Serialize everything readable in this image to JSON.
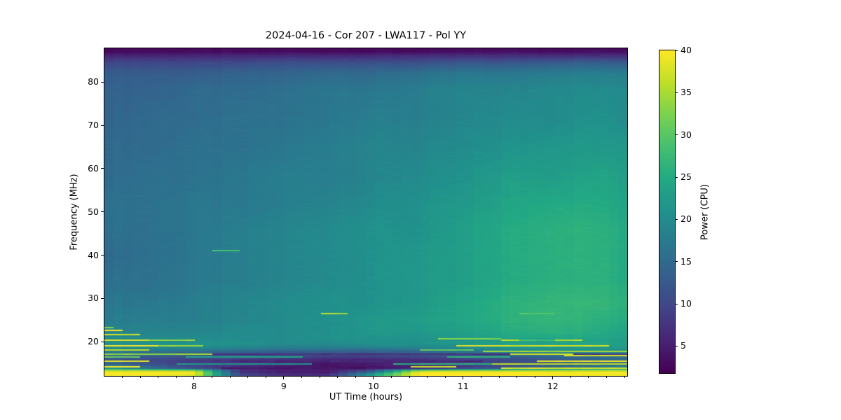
{
  "title": "2024-04-16 - Cor 207 - LWA117 - Pol YY",
  "chart_data": {
    "type": "heatmap",
    "subtype": "dynamic-spectrum",
    "title": "2024-04-16 - Cor 207 - LWA117 - Pol YY",
    "xlabel": "UT Time (hours)",
    "ylabel": "Frequency (MHz)",
    "colorbar_label": "Power (CPU)",
    "xlim": [
      7.0,
      12.83
    ],
    "ylim": [
      12.1,
      87.8
    ],
    "clim": [
      1.8,
      40
    ],
    "x_ticks": [
      8,
      9,
      10,
      11,
      12
    ],
    "x_minor_tick_step": 0.2,
    "y_ticks": [
      20,
      30,
      40,
      50,
      60,
      70,
      80
    ],
    "colorbar_ticks": [
      5,
      10,
      15,
      20,
      25,
      30,
      35,
      40
    ],
    "colormap": "viridis",
    "colormap_stops": [
      [
        0,
        "#440154"
      ],
      [
        0.1,
        "#482475"
      ],
      [
        0.2,
        "#414487"
      ],
      [
        0.3,
        "#355f8d"
      ],
      [
        0.4,
        "#2a788e"
      ],
      [
        0.5,
        "#21918c"
      ],
      [
        0.6,
        "#22a884"
      ],
      [
        0.7,
        "#44bf70"
      ],
      [
        0.8,
        "#7ad151"
      ],
      [
        0.9,
        "#bddf26"
      ],
      [
        1,
        "#fde725"
      ]
    ],
    "grid": false,
    "legend": false,
    "background": {
      "times": [
        7.0,
        7.5,
        8.0,
        8.5,
        9.0,
        9.5,
        10.0,
        10.5,
        11.0,
        11.5,
        12.0,
        12.5,
        12.85
      ],
      "freqs": [
        87.8,
        87.0,
        86.0,
        84.5,
        82.0,
        78.0,
        72.0,
        65.0,
        58.0,
        52.0,
        46.0,
        40.0,
        34.0,
        29.0,
        25.0,
        22.0,
        20.5,
        19.5,
        18.4,
        17.4,
        16.4,
        15.5,
        14.7,
        13.9,
        13.1,
        12.5,
        12.1
      ],
      "values": [
        [
          2.5,
          2.5,
          2.5,
          2.5,
          2.5,
          2.5,
          2.5,
          2.5,
          2.5,
          2.5,
          2.5,
          2.5,
          2.5
        ],
        [
          3,
          3,
          3,
          3,
          3,
          3,
          3,
          3,
          3.5,
          3.5,
          3.5,
          3.5,
          3.5
        ],
        [
          6,
          6,
          6,
          6,
          6.5,
          6.5,
          6.5,
          7,
          7,
          7,
          7,
          7,
          7
        ],
        [
          10,
          10,
          10,
          10,
          11,
          11,
          11,
          11,
          12,
          12,
          13,
          13,
          13
        ],
        [
          13,
          13,
          13,
          14,
          14,
          15,
          15,
          16,
          17,
          17,
          18,
          18,
          18
        ],
        [
          14,
          14,
          15,
          15,
          16,
          17,
          17,
          18,
          19,
          19,
          20,
          20,
          20
        ],
        [
          14,
          15,
          15,
          16,
          16,
          17,
          18,
          18,
          19,
          20,
          20,
          21,
          20
        ],
        [
          15,
          15,
          16,
          16,
          17,
          18,
          19,
          19,
          20,
          21,
          22,
          22,
          22
        ],
        [
          15,
          16,
          16,
          17,
          18,
          18,
          19,
          20,
          21,
          23,
          23,
          24,
          23
        ],
        [
          16,
          16,
          17,
          17,
          18,
          19,
          20,
          21,
          22,
          24,
          25,
          25,
          24
        ],
        [
          16,
          16,
          17,
          18,
          19,
          20,
          21,
          21,
          23,
          25,
          26,
          26,
          25
        ],
        [
          15,
          16,
          17,
          18,
          19,
          20,
          21,
          22,
          23,
          25,
          26,
          26,
          25
        ],
        [
          16,
          16,
          17,
          18,
          19,
          20,
          21,
          22,
          23,
          25,
          26,
          26,
          25
        ],
        [
          17,
          17,
          18,
          19,
          20,
          21,
          21,
          22,
          24,
          26,
          27,
          27,
          26
        ],
        [
          18,
          18,
          18,
          19,
          20,
          21,
          22,
          23,
          24,
          26,
          27,
          26,
          25
        ],
        [
          19,
          19,
          19,
          20,
          20,
          21,
          22,
          22,
          23,
          25,
          26,
          25,
          24
        ],
        [
          20,
          20,
          20,
          20,
          20,
          21,
          21,
          21,
          22,
          24,
          24,
          24,
          23
        ],
        [
          21,
          21,
          21,
          21,
          20,
          20,
          21,
          21,
          22,
          23,
          24,
          24,
          23
        ],
        [
          20,
          19,
          19,
          18,
          17,
          17,
          17,
          18,
          19,
          21,
          22,
          22,
          22
        ],
        [
          17,
          15,
          14,
          13,
          12,
          12,
          12,
          13,
          15,
          17,
          18,
          19,
          19
        ],
        [
          13,
          12,
          11,
          10,
          9,
          8,
          8,
          9,
          10,
          12,
          14,
          15,
          16
        ],
        [
          12,
          10,
          8,
          7,
          6,
          5,
          5,
          6,
          8,
          10,
          12,
          13,
          14
        ],
        [
          16,
          12,
          9,
          7,
          5,
          4,
          5,
          6,
          8,
          10,
          12,
          14,
          16
        ],
        [
          22,
          16,
          11,
          7,
          5,
          4,
          4,
          6,
          9,
          13,
          16,
          18,
          20
        ],
        [
          40,
          40,
          40,
          7,
          5,
          5,
          14,
          40,
          40,
          40,
          40,
          40,
          40
        ],
        [
          40,
          40,
          39,
          9,
          6,
          6,
          22,
          40,
          40,
          40,
          40,
          40,
          40
        ],
        [
          38,
          38,
          36,
          10,
          7,
          7,
          24,
          40,
          40,
          40,
          39,
          38,
          38
        ]
      ]
    },
    "rfi_stripes": [
      {
        "f": 23.2,
        "h": 0.25,
        "t0": 7.0,
        "t1": 7.1,
        "p": 33
      },
      {
        "f": 22.5,
        "h": 0.35,
        "t0": 7.0,
        "t1": 7.2,
        "p": 40
      },
      {
        "f": 21.8,
        "h": 0.3,
        "t0": 7.0,
        "t1": 7.35,
        "p": 37
      },
      {
        "f": 20.5,
        "h": 0.35,
        "t0": 7.0,
        "t1": 7.5,
        "p": 38
      },
      {
        "f": 20.5,
        "h": 0.3,
        "t0": 7.6,
        "t1": 7.95,
        "p": 34
      },
      {
        "f": 20.6,
        "h": 0.3,
        "t0": 10.75,
        "t1": 11.35,
        "p": 33
      },
      {
        "f": 20.2,
        "h": 0.35,
        "t0": 11.45,
        "t1": 12.3,
        "p": 36
      },
      {
        "f": 18.9,
        "h": 0.4,
        "t0": 7.0,
        "t1": 7.6,
        "p": 40
      },
      {
        "f": 18.9,
        "h": 0.35,
        "t0": 7.7,
        "t1": 8.05,
        "p": 34
      },
      {
        "f": 19.0,
        "h": 0.4,
        "t0": 11.0,
        "t1": 12.55,
        "p": 38
      },
      {
        "f": 18.2,
        "h": 0.3,
        "t0": 7.0,
        "t1": 7.45,
        "p": 36
      },
      {
        "f": 18.2,
        "h": 0.25,
        "t0": 10.6,
        "t1": 11.1,
        "p": 30
      },
      {
        "f": 17.9,
        "h": 0.3,
        "t0": 11.3,
        "t1": 12.85,
        "p": 35
      },
      {
        "f": 17.1,
        "h": 0.45,
        "t0": 8.3,
        "t1": 12.85,
        "p": 7
      },
      {
        "f": 17.1,
        "h": 0.4,
        "t0": 7.0,
        "t1": 8.2,
        "p": 34
      },
      {
        "f": 17.2,
        "h": 0.3,
        "t0": 11.6,
        "t1": 12.15,
        "p": 37
      },
      {
        "f": 16.9,
        "h": 0.25,
        "t0": 12.2,
        "t1": 12.85,
        "p": 38
      },
      {
        "f": 16.4,
        "h": 0.3,
        "t0": 7.0,
        "t1": 7.4,
        "p": 31
      },
      {
        "f": 16.4,
        "h": 0.25,
        "t0": 8.0,
        "t1": 9.2,
        "p": 24
      },
      {
        "f": 16.5,
        "h": 0.25,
        "t0": 10.9,
        "t1": 11.5,
        "p": 26
      },
      {
        "f": 15.6,
        "h": 0.4,
        "t0": 8.5,
        "t1": 11.2,
        "p": 6
      },
      {
        "f": 15.6,
        "h": 0.3,
        "t0": 7.0,
        "t1": 7.5,
        "p": 38
      },
      {
        "f": 15.5,
        "h": 0.35,
        "t0": 11.9,
        "t1": 12.85,
        "p": 39
      },
      {
        "f": 14.8,
        "h": 0.3,
        "t0": 7.9,
        "t1": 9.3,
        "p": 21
      },
      {
        "f": 14.9,
        "h": 0.3,
        "t0": 10.3,
        "t1": 11.3,
        "p": 26
      },
      {
        "f": 14.7,
        "h": 0.3,
        "t0": 11.4,
        "t1": 12.85,
        "p": 36
      },
      {
        "f": 14.1,
        "h": 0.35,
        "t0": 7.0,
        "t1": 7.4,
        "p": 40
      },
      {
        "f": 13.9,
        "h": 0.45,
        "t0": 8.4,
        "t1": 10.0,
        "p": 4
      },
      {
        "f": 14.2,
        "h": 0.3,
        "t0": 10.45,
        "t1": 10.9,
        "p": 37
      },
      {
        "f": 14.0,
        "h": 0.35,
        "t0": 11.5,
        "t1": 12.85,
        "p": 38
      },
      {
        "f": 26.4,
        "h": 0.3,
        "t0": 9.42,
        "t1": 9.67,
        "p": 35
      },
      {
        "f": 41.1,
        "h": 0.25,
        "t0": 8.3,
        "t1": 8.5,
        "p": 29
      },
      {
        "f": 26.6,
        "h": 0.3,
        "t0": 11.65,
        "t1": 12.0,
        "p": 30
      },
      {
        "f": 20.3,
        "h": 0.25,
        "t0": 11.7,
        "t1": 12.0,
        "p": 28
      }
    ]
  }
}
